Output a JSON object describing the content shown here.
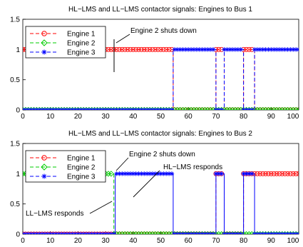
{
  "colors": {
    "engine_1": "#ff0000",
    "engine_2": "#00cc00",
    "engine_3": "#0000ff",
    "axes": "#000000",
    "background": "#ffffff"
  },
  "chart_data": [
    {
      "type": "line",
      "title": "HL−LMS and LL−LMS contactor signals: Engines to Bus 1",
      "xlabel": "",
      "ylabel": "",
      "xlim": [
        0,
        100
      ],
      "ylim": [
        0,
        1.5
      ],
      "x_ticks": [
        "0",
        "10",
        "20",
        "30",
        "40",
        "50",
        "60",
        "70",
        "80",
        "90",
        "100"
      ],
      "y_ticks": [
        "0",
        "0.5",
        "1",
        "1.5"
      ],
      "grid": false,
      "legend_position": "top-left",
      "series": [
        {
          "name": "Engine 1",
          "line_style": "dashed",
          "marker": "circle",
          "color": "#ff0000",
          "x": [
            0,
            54.5,
            54.5,
            70,
            70,
            73,
            73,
            80,
            80,
            84,
            84,
            100
          ],
          "y": [
            1,
            1,
            0,
            0,
            1,
            1,
            0,
            0,
            1,
            1,
            0,
            0
          ]
        },
        {
          "name": "Engine 2",
          "line_style": "dashed",
          "marker": "diamond",
          "color": "#00cc00",
          "x": [
            0,
            54.5,
            54.5,
            70,
            70,
            73,
            73,
            80,
            80,
            84,
            84,
            100
          ],
          "y": [
            0,
            0,
            0,
            0,
            0,
            0,
            0,
            0,
            0,
            0,
            0,
            0
          ]
        },
        {
          "name": "Engine 3",
          "line_style": "dashed",
          "marker": "star",
          "color": "#0000ff",
          "x": [
            0,
            54.5,
            54.5,
            70,
            70,
            73,
            73,
            80,
            80,
            84,
            84,
            100
          ],
          "y": [
            0,
            0,
            1,
            1,
            0,
            0,
            1,
            1,
            0,
            0,
            1,
            1
          ]
        }
      ],
      "annotations": [
        {
          "text": "Engine 2 shuts down",
          "x": 33.5,
          "y": 1.0
        }
      ]
    },
    {
      "type": "line",
      "title": "HL−LMS and LL−LMS contactor signals: Engines to Bus 2",
      "xlabel": "",
      "ylabel": "",
      "xlim": [
        0,
        100
      ],
      "ylim": [
        0,
        1.5
      ],
      "x_ticks": [
        "0",
        "10",
        "20",
        "30",
        "40",
        "50",
        "60",
        "70",
        "80",
        "90",
        "100"
      ],
      "y_ticks": [
        "0",
        "0.5",
        "1",
        "1.5"
      ],
      "grid": false,
      "legend_position": "top-left",
      "series": [
        {
          "name": "Engine 1",
          "line_style": "dashed",
          "marker": "circle",
          "color": "#ff0000",
          "x": [
            0,
            54.5,
            54.5,
            70,
            70,
            73,
            73,
            80,
            80,
            84,
            84,
            100
          ],
          "y": [
            0,
            0,
            0,
            0,
            1,
            1,
            0,
            0,
            1,
            1,
            1,
            1
          ]
        },
        {
          "name": "Engine 2",
          "line_style": "dashed",
          "marker": "diamond",
          "color": "#00cc00",
          "x": [
            0,
            33,
            33,
            39,
            39,
            100
          ],
          "y": [
            1,
            1,
            0,
            0,
            0,
            0
          ]
        },
        {
          "name": "Engine 3",
          "line_style": "solid",
          "marker": "star",
          "color": "#0000ff",
          "x": [
            0,
            33.5,
            33.5,
            54.5,
            54.5,
            70,
            70,
            73,
            73,
            80,
            80,
            84,
            84,
            100
          ],
          "y": [
            0,
            0,
            1,
            1,
            0,
            0,
            1,
            1,
            0,
            0,
            1,
            1,
            0,
            0
          ]
        }
      ],
      "annotations": [
        {
          "text": "Engine 2 shuts down",
          "x": 33.5,
          "y": 1.0
        },
        {
          "text": "HL−LMS responds",
          "x": 39,
          "y": 0.5
        },
        {
          "text": "LL−LMS responds",
          "x": 34,
          "y": 0.5
        }
      ]
    }
  ]
}
